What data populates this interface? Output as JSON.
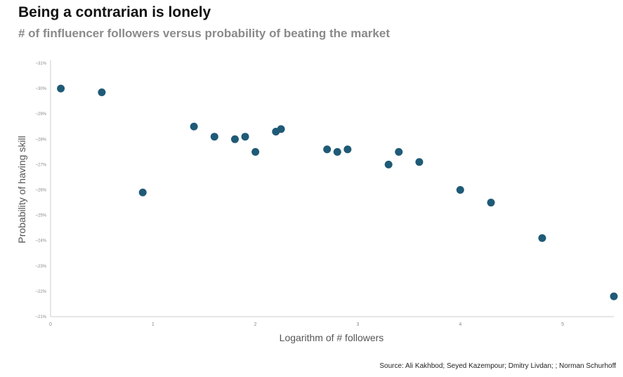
{
  "header": {
    "title": "Being a contrarian is lonely",
    "subtitle": "# of finfluencer followers versus probability of beating the market"
  },
  "footer": {
    "source": "Source: Ali Kakhbod; Seyed Kazempour; Dmitry Livdan; ; Norman Schurhoff"
  },
  "colors": {
    "point": "#1f5a77",
    "axis": "#cccccc",
    "tick_text": "#888888",
    "axis_label": "#555555"
  },
  "chart_data": {
    "type": "scatter",
    "title": "Being a contrarian is lonely",
    "subtitle": "# of finfluencer followers versus probability of beating the market",
    "xlabel": "Logarithm of # followers",
    "ylabel": "Probability of having skill",
    "xlim": [
      0,
      5.5
    ],
    "ylim": [
      21,
      31
    ],
    "x_ticks": [
      0,
      1,
      2,
      3,
      4,
      5
    ],
    "x_tick_labels": [
      "0",
      "1",
      "2",
      "3",
      "4",
      "5"
    ],
    "y_ticks": [
      21,
      22,
      23,
      24,
      25,
      26,
      27,
      28,
      29,
      30,
      31
    ],
    "y_tick_labels": [
      "~21%",
      "~22%",
      "~23%",
      "~24%",
      "~25%",
      "~26%",
      "~27%",
      "~28%",
      "~29%",
      "~30%",
      "~31%"
    ],
    "grid": false,
    "legend": "none",
    "points": [
      {
        "x": 0.1,
        "y": 30.0
      },
      {
        "x": 0.5,
        "y": 29.85
      },
      {
        "x": 0.9,
        "y": 25.9
      },
      {
        "x": 1.4,
        "y": 28.5
      },
      {
        "x": 1.6,
        "y": 28.1
      },
      {
        "x": 1.8,
        "y": 28.0
      },
      {
        "x": 1.9,
        "y": 28.1
      },
      {
        "x": 2.0,
        "y": 27.5
      },
      {
        "x": 2.2,
        "y": 28.3
      },
      {
        "x": 2.25,
        "y": 28.4
      },
      {
        "x": 2.7,
        "y": 27.6
      },
      {
        "x": 2.8,
        "y": 27.5
      },
      {
        "x": 2.9,
        "y": 27.6
      },
      {
        "x": 3.3,
        "y": 27.0
      },
      {
        "x": 3.4,
        "y": 27.5
      },
      {
        "x": 3.6,
        "y": 27.1
      },
      {
        "x": 4.0,
        "y": 26.0
      },
      {
        "x": 4.3,
        "y": 25.5
      },
      {
        "x": 4.8,
        "y": 24.1
      },
      {
        "x": 5.5,
        "y": 21.8
      }
    ]
  }
}
